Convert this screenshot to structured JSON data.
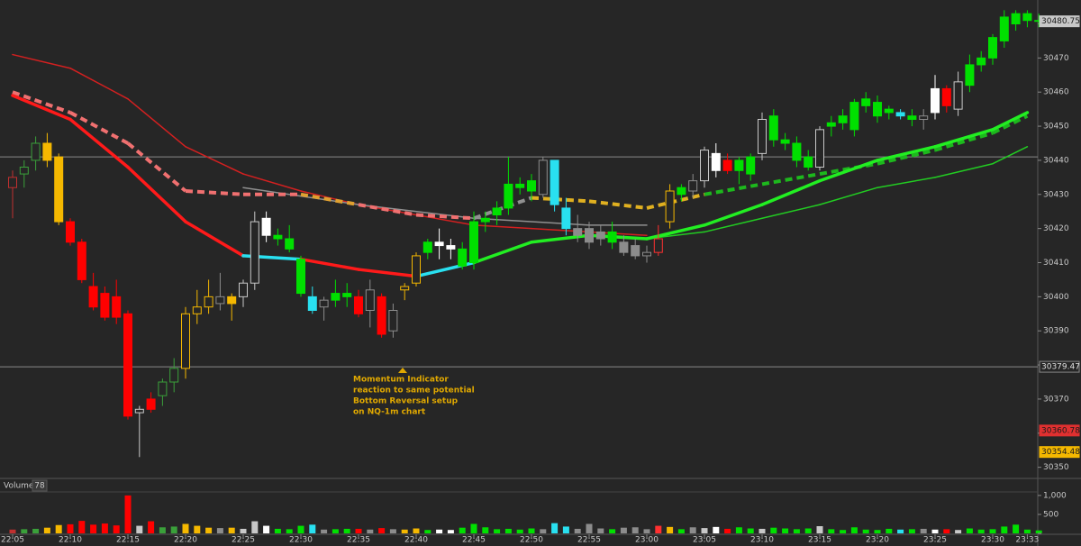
{
  "chart_data": {
    "type": "candlestick",
    "categories": [
      "22:05",
      null,
      null,
      null,
      null,
      "22:10",
      null,
      null,
      null,
      null,
      "22:15",
      null,
      null,
      null,
      null,
      "22:20",
      null,
      null,
      null,
      null,
      "22:25",
      null,
      null,
      null,
      null,
      "22:30",
      null,
      null,
      null,
      null,
      "22:35",
      null,
      null,
      null,
      null,
      "22:40",
      null,
      null,
      null,
      null,
      "22:45",
      null,
      null,
      null,
      null,
      "22:50",
      null,
      null,
      null,
      null,
      "22:55",
      null,
      null,
      null,
      null,
      "23:00",
      null,
      null,
      null,
      null,
      "23:05",
      null,
      null,
      null,
      null,
      "23:10",
      null,
      null,
      null,
      null,
      "23:15",
      null,
      null,
      null,
      null,
      "23:20",
      null,
      null,
      null,
      null,
      "23:25",
      null,
      null,
      null,
      null,
      "23:30",
      null,
      null,
      "23:33",
      null
    ],
    "candles": {
      "open": [
        30432,
        30436,
        30440,
        30445,
        30441,
        30422,
        30416,
        30403,
        30401,
        30400,
        30395,
        30366,
        30370,
        30371,
        30375,
        30379,
        30395,
        30397,
        30400,
        30398,
        30400,
        30404,
        30423,
        30418,
        30417,
        30411,
        30400,
        30397,
        30399,
        30400,
        30400,
        30396,
        30400,
        30390,
        30402,
        30404,
        30413,
        30416,
        30415,
        30414,
        30410,
        30422,
        30424,
        30426,
        30433,
        30431,
        30430,
        30440,
        30426,
        30420,
        30420,
        30419,
        30419,
        30416,
        30415,
        30413,
        30413,
        30422,
        30430,
        30431,
        30434,
        30442,
        30440,
        30437,
        30436,
        30442,
        30446,
        30446,
        30445,
        30441,
        30438,
        30450,
        30451,
        30449,
        30456,
        30457,
        30454,
        30454,
        30453,
        30452,
        30454,
        30461,
        30455,
        30462,
        30468,
        30470,
        30475,
        30480,
        30481,
        30481
      ],
      "high": [
        30437,
        30440,
        30447,
        30448,
        30442,
        30423,
        30417,
        30407,
        30403,
        30405,
        30396,
        30368,
        30372,
        30376,
        30382,
        30397,
        30402,
        30405,
        30407,
        30401,
        30405,
        30425,
        30425,
        30420,
        30421,
        30412,
        30403,
        30400,
        30405,
        30404,
        30402,
        30405,
        30401,
        30398,
        30404,
        30413,
        30417,
        30420,
        30417,
        30416,
        30425,
        30425,
        30428,
        30441,
        30435,
        30436,
        30441,
        30440,
        30429,
        30424,
        30422,
        30421,
        30422,
        30418,
        30417,
        30415,
        30421,
        30433,
        30433,
        30436,
        30444,
        30445,
        30442,
        30441,
        30442,
        30454,
        30455,
        30448,
        30447,
        30443,
        30450,
        30453,
        30455,
        30458,
        30460,
        30459,
        30456,
        30455,
        30455,
        30455,
        30465,
        30462,
        30466,
        30471,
        30472,
        30477,
        30484,
        30484,
        30484,
        30483
      ],
      "low": [
        30423,
        30432,
        30437,
        30438,
        30421,
        30415,
        30404,
        30396,
        30393,
        30392,
        30364,
        30353,
        30366,
        30368,
        30372,
        30376,
        30392,
        30395,
        30396,
        30393,
        30397,
        30402,
        30416,
        30415,
        30413,
        30400,
        30395,
        30393,
        30397,
        30397,
        30394,
        30391,
        30388,
        30388,
        30399,
        30403,
        30411,
        30411,
        30411,
        30408,
        30408,
        30419,
        30421,
        30424,
        30430,
        30428,
        30429,
        30425,
        30418,
        30416,
        30414,
        30415,
        30414,
        30412,
        30411,
        30410,
        30412,
        30420,
        30428,
        30429,
        30432,
        30435,
        30436,
        30433,
        30434,
        30440,
        30444,
        30443,
        30438,
        30437,
        30437,
        30447,
        30449,
        30447,
        30454,
        30451,
        30452,
        30452,
        30450,
        30449,
        30452,
        30454,
        30453,
        30460,
        30466,
        30468,
        30473,
        30478,
        30479,
        30479
      ],
      "close": [
        30435,
        30438,
        30445,
        30440,
        30422,
        30416,
        30405,
        30397,
        30394,
        30394,
        30365,
        30367,
        30367,
        30375,
        30379,
        30395,
        30397,
        30400,
        30398,
        30400,
        30404,
        30422,
        30418,
        30417,
        30414,
        30401,
        30396,
        30399,
        30401,
        30401,
        30395,
        30402,
        30389,
        30396,
        30403,
        30412,
        30416,
        30415,
        30414,
        30409,
        30422,
        30423,
        30426,
        30433,
        30432,
        30434,
        30440,
        30427,
        30420,
        30418,
        30416,
        30417,
        30416,
        30413,
        30412,
        30412,
        30417,
        30431,
        30432,
        30434,
        30443,
        30437,
        30437,
        30440,
        30441,
        30452,
        30453,
        30445,
        30440,
        30438,
        30449,
        30451,
        30453,
        30457,
        30458,
        30453,
        30455,
        30453,
        30452,
        30453,
        30461,
        30456,
        30463,
        30468,
        30470,
        30476,
        30482,
        30483,
        30483,
        30480.75
      ],
      "colors": [
        "#c03030",
        "#3aa03a",
        "#3aa03a",
        "#f5b800",
        "#f5b800",
        "#ff0000",
        "#ff0000",
        "#ff0000",
        "#ff0000",
        "#ff0000",
        "#ff0000",
        "#c8c8c8",
        "#ff0000",
        "#3aa03a",
        "#3aa03a",
        "#f5b800",
        "#f5b800",
        "#f5b800",
        "#8c8c8c",
        "#f5b800",
        "#c8c8c8",
        "#c8c8c8",
        "#ffffff",
        "#00e000",
        "#00e000",
        "#00e000",
        "#29e0f0",
        "#8c8c8c",
        "#00e000",
        "#00e000",
        "#ff0000",
        "#8c8c8c",
        "#ff0000",
        "#8c8c8c",
        "#f5b800",
        "#f5b800",
        "#00e000",
        "#ffffff",
        "#ffffff",
        "#00e000",
        "#00e000",
        "#00e000",
        "#00e000",
        "#00e000",
        "#00e000",
        "#00e000",
        "#8c8c8c",
        "#29e0f0",
        "#29e0f0",
        "#8c8c8c",
        "#8c8c8c",
        "#8c8c8c",
        "#00e000",
        "#8c8c8c",
        "#8c8c8c",
        "#8c8c8c",
        "#ff3030",
        "#f5b800",
        "#00e000",
        "#8c8c8c",
        "#c8c8c8",
        "#ffffff",
        "#ff0000",
        "#00e000",
        "#00e000",
        "#c8c8c8",
        "#00e000",
        "#00e000",
        "#00e000",
        "#00e000",
        "#c8c8c8",
        "#00e000",
        "#00e000",
        "#00e000",
        "#00e000",
        "#00e000",
        "#00e000",
        "#29e0f0",
        "#00e000",
        "#8c8c8c",
        "#ffffff",
        "#ff0000",
        "#c8c8c8",
        "#00e000",
        "#00e000",
        "#00e000",
        "#00e000",
        "#00e000",
        "#00e000",
        "#00e000"
      ],
      "hollow": [
        true,
        true,
        true,
        false,
        false,
        false,
        false,
        false,
        false,
        false,
        false,
        true,
        false,
        true,
        true,
        true,
        true,
        true,
        true,
        false,
        true,
        true,
        false,
        false,
        false,
        false,
        false,
        true,
        false,
        false,
        false,
        true,
        false,
        true,
        true,
        true,
        false,
        false,
        false,
        false,
        false,
        false,
        false,
        false,
        false,
        false,
        true,
        false,
        false,
        false,
        false,
        false,
        false,
        false,
        false,
        true,
        true,
        true,
        false,
        true,
        true,
        false,
        false,
        false,
        false,
        true,
        false,
        false,
        false,
        false,
        true,
        false,
        false,
        false,
        false,
        false,
        false,
        false,
        false,
        true,
        false,
        false,
        true,
        false,
        false,
        false,
        false,
        false,
        false,
        true
      ]
    },
    "ylim": [
      30347,
      30487
    ],
    "yticks": [
      30350,
      30360,
      30370,
      30380,
      30390,
      30400,
      30410,
      30420,
      30430,
      30440,
      30450,
      30460,
      30470,
      30480
    ],
    "hlines": [
      30441,
      30379.47
    ],
    "price_labels": [
      {
        "value": 30480.75,
        "color": "#c8c8c8"
      },
      {
        "value": 30379.47,
        "color": "#262626"
      },
      {
        "value": 30360.78,
        "color": "#e03030"
      },
      {
        "value": 30354.48,
        "color": "#f5b800"
      }
    ],
    "lines": [
      {
        "color": "#d42020",
        "width": 1.5,
        "dashed": false,
        "x": [
          "22:05",
          "22:10",
          "22:15",
          "22:20",
          "22:25",
          "22:30",
          "22:35",
          "22:40",
          "22:45",
          "22:50",
          "22:55",
          "23:00"
        ],
        "values": [
          30471,
          30467,
          30458,
          30444,
          30436,
          30431,
          30427,
          30424,
          30421,
          30420,
          30419,
          30418
        ],
        "colors": [
          "#d42020",
          "#d42020",
          "#d42020",
          "#d42020",
          "#d42020",
          "#d42020",
          "#d42020",
          "#d42020",
          "#d42020",
          "#d42020",
          "#d42020",
          "#d42020"
        ]
      },
      {
        "color": "#909090",
        "width": 1.5,
        "dashed": false,
        "x": [
          "22:25",
          "22:35",
          "22:45",
          "22:55",
          "23:00"
        ],
        "values": [
          30432,
          30427,
          30423,
          30421,
          30421
        ],
        "colors": [
          "#909090",
          "#909090",
          "#909090",
          "#909090",
          "#909090"
        ]
      },
      {
        "color": "#f07070",
        "width": 4,
        "dashed": true,
        "x": [
          "22:05",
          "22:10",
          "22:15",
          "22:20",
          "22:25",
          "22:30",
          "22:35",
          "22:40",
          "22:45",
          "22:50",
          "22:55",
          "23:00",
          "23:05",
          "23:10",
          "23:15",
          "23:20",
          "23:25",
          "23:30",
          "23:33"
        ],
        "values": [
          30460,
          30454,
          30445,
          30431,
          30430,
          30430,
          30427,
          30424,
          30423,
          30429,
          30428,
          30426,
          30430,
          30433,
          30436,
          30439,
          30443,
          30448,
          30453
        ],
        "colors": [
          "#f07070",
          "#f07070",
          "#f07070",
          "#f07070",
          "#f07070",
          "#e0a030",
          "#f07070",
          "#f07070",
          "#909090",
          "#e0b020",
          "#e0b020",
          "#e0b020",
          "#1db81d",
          "#1db81d",
          "#1db81d",
          "#1db81d",
          "#1db81d",
          "#1db81d",
          "#1db81d"
        ]
      },
      {
        "color": "#22cc22",
        "width": 1.5,
        "dashed": false,
        "x": [
          "23:00",
          "23:05",
          "23:10",
          "23:15",
          "23:20",
          "23:25",
          "23:30",
          "23:33"
        ],
        "values": [
          30417,
          30419,
          30423,
          30427,
          30432,
          30435,
          30439,
          30444
        ],
        "colors": [
          "#22cc22",
          "#22cc22",
          "#22cc22",
          "#22cc22",
          "#22cc22",
          "#22cc22",
          "#22cc22",
          "#22cc22"
        ]
      },
      {
        "color": "#ff1a1a",
        "width": 3.5,
        "dashed": false,
        "x": [
          "22:05",
          "22:10",
          "22:15",
          "22:20",
          "22:25",
          "22:30",
          "22:35",
          "22:40",
          "22:45",
          "22:50",
          "22:55",
          "23:00",
          "23:05",
          "23:10",
          "23:15",
          "23:20",
          "23:25",
          "23:30",
          "23:33"
        ],
        "values": [
          30459,
          30452,
          30438,
          30422,
          30412,
          30411,
          30408,
          30406,
          30410,
          30416,
          30418,
          30417,
          30421,
          30427,
          30434,
          30440,
          30444,
          30449,
          30454
        ],
        "colors": [
          "#ff1a1a",
          "#ff1a1a",
          "#ff1a1a",
          "#ff1a1a",
          "#29e0f0",
          "#ff1a1a",
          "#ff1a1a",
          "#29e0f0",
          "#22ee22",
          "#22ee22",
          "#22ee22",
          "#22ee22",
          "#22ee22",
          "#22ee22",
          "#22ee22",
          "#22ee22",
          "#22ee22",
          "#22ee22",
          "#22ee22"
        ]
      }
    ],
    "annotation": [
      "Momentum Indicator",
      "reaction to same potential",
      "Bottom Reversal setup",
      "on NQ-1m chart"
    ],
    "volume": {
      "label": "Volume",
      "values": [
        100,
        110,
        120,
        150,
        220,
        240,
        330,
        230,
        260,
        210,
        1000,
        200,
        320,
        160,
        180,
        250,
        200,
        150,
        140,
        150,
        120,
        320,
        200,
        120,
        110,
        200,
        230,
        100,
        110,
        120,
        120,
        100,
        140,
        110,
        100,
        130,
        90,
        100,
        90,
        150,
        250,
        160,
        110,
        120,
        100,
        130,
        110,
        270,
        180,
        120,
        250,
        130,
        110,
        150,
        160,
        110,
        200,
        170,
        110,
        160,
        140,
        170,
        120,
        160,
        130,
        120,
        150,
        130,
        110,
        130,
        190,
        110,
        90,
        160,
        100,
        90,
        120,
        100,
        110,
        120,
        100,
        110,
        90,
        130,
        100,
        110,
        180,
        230,
        100,
        78
      ],
      "ylim": [
        0,
        1045
      ],
      "yticks": [
        0,
        500,
        {
          "value": 1000,
          "label": "1,000"
        }
      ]
    }
  }
}
